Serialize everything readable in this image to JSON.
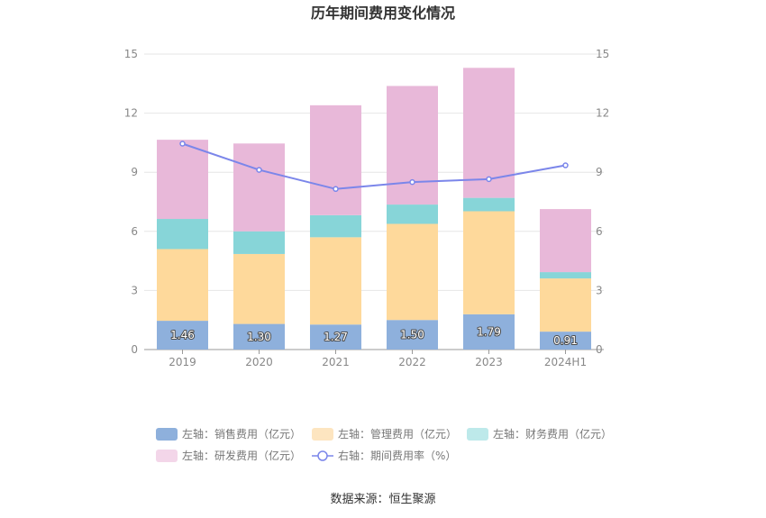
{
  "chart_data": {
    "type": "bar",
    "title": "历年期间费用变化情况",
    "categories": [
      "2019",
      "2020",
      "2021",
      "2022",
      "2023",
      "2024H1"
    ],
    "left_axis": {
      "ylim": [
        0,
        15
      ],
      "ticks": [
        "0",
        "3",
        "6",
        "9",
        "12",
        "15"
      ]
    },
    "right_axis": {
      "ylim": [
        0,
        15
      ],
      "ticks": [
        "0",
        "3",
        "6",
        "9",
        "12",
        "15"
      ]
    },
    "series": [
      {
        "name": "左轴：销售费用（亿元）",
        "color": "#8eb0dc",
        "axis": "left",
        "kind": "bar",
        "values": [
          1.46,
          1.3,
          1.27,
          1.5,
          1.79,
          0.91
        ],
        "labels": [
          "1.46",
          "1.30",
          "1.27",
          "1.50",
          "1.79",
          "0.91"
        ]
      },
      {
        "name": "左轴：管理费用（亿元）",
        "color": "#fed99b",
        "axis": "left",
        "kind": "bar",
        "values": [
          3.64,
          3.55,
          4.43,
          4.88,
          5.23,
          2.7
        ]
      },
      {
        "name": "左轴：财务费用（亿元）",
        "color": "#87d5d8",
        "axis": "left",
        "kind": "bar",
        "values": [
          1.53,
          1.15,
          1.12,
          0.98,
          0.68,
          0.32
        ]
      },
      {
        "name": "左轴：研发费用（亿元）",
        "color": "#e8b8d9",
        "axis": "left",
        "kind": "bar",
        "values": [
          4.02,
          4.46,
          5.58,
          6.02,
          6.6,
          3.2
        ]
      },
      {
        "name": "右轴：期间费用率（%）",
        "color": "#7b86ea",
        "axis": "right",
        "kind": "line",
        "values": [
          10.45,
          9.12,
          8.15,
          8.5,
          8.65,
          9.35
        ]
      }
    ],
    "legend_position": "bottom",
    "grid": true
  },
  "source_text": "数据来源：恒生聚源"
}
